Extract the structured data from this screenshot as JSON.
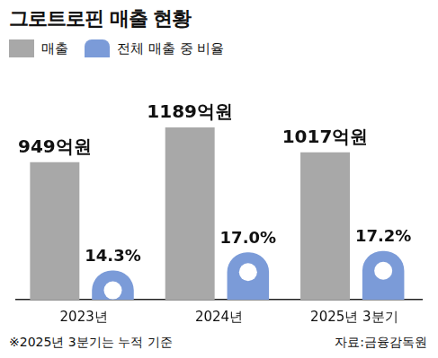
{
  "chart_data": {
    "type": "bar",
    "title": "그로트로핀 매출 현황",
    "categories": [
      "2023년",
      "2024년",
      "2025년 3분기"
    ],
    "series": [
      {
        "name": "매출",
        "color": "#a8a8a8",
        "values": [
          949,
          1189,
          1017
        ],
        "value_labels": [
          "949억원",
          "1189억원",
          "1017억원"
        ],
        "axis": "y"
      },
      {
        "name": "전체 매출 중 비율",
        "color": "#7b9bd8",
        "values": [
          14.3,
          17.0,
          17.2
        ],
        "value_labels": [
          "14.3%",
          "17.0%",
          "17.2%"
        ],
        "axis": "y2"
      }
    ],
    "ylim": [
      0,
      1400
    ],
    "yticks": [
      0,
      1400
    ],
    "y2lim": [
      10,
      40
    ],
    "y2ticks": [
      10,
      40
    ],
    "data_labels": true,
    "tick_labels": "x",
    "legend": "top-left",
    "grid": false,
    "annotations": [
      "※2025년 3분기는 누적 기준"
    ],
    "source": "자료:금융감독원"
  }
}
